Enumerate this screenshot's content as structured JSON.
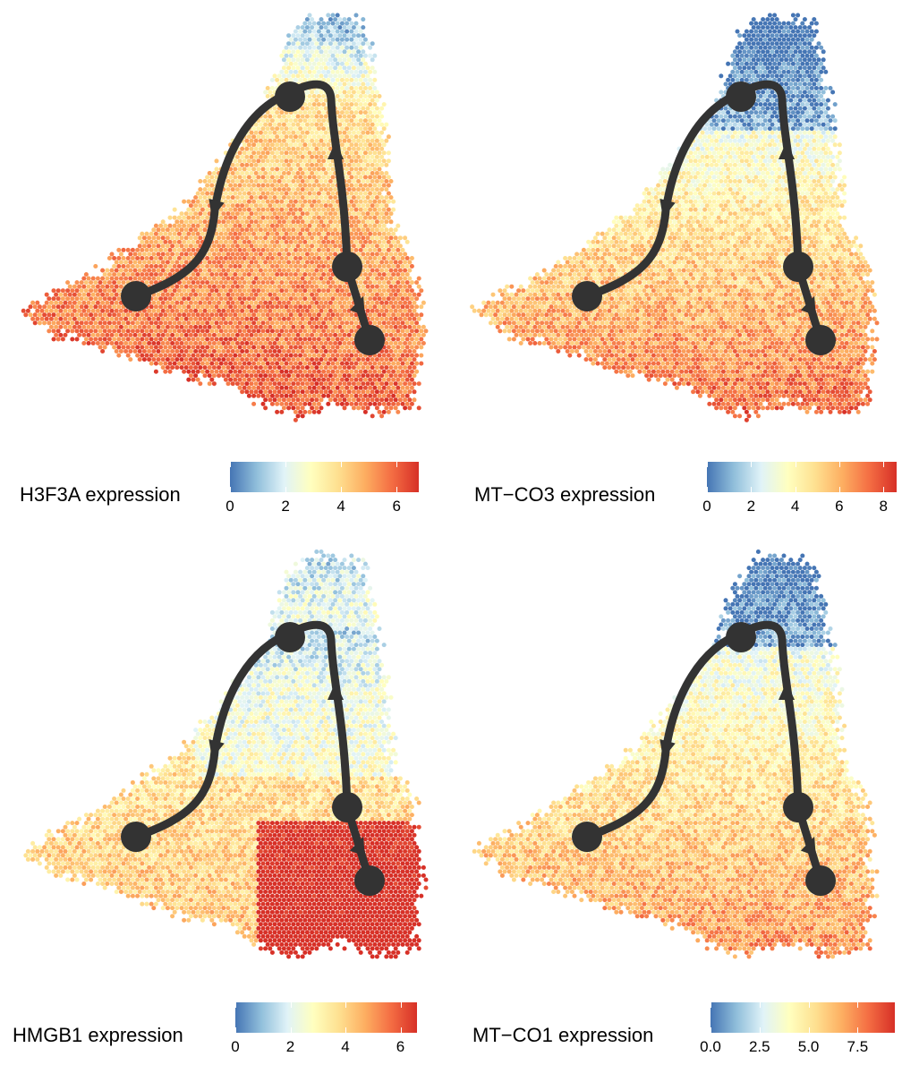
{
  "colorscale": [
    "#4575b4",
    "#91bfdb",
    "#e0f3f8",
    "#ffffbf",
    "#fee090",
    "#fdae61",
    "#f46d43",
    "#d73027"
  ],
  "chart_data": [
    {
      "type": "scatter",
      "subtype": "hexbin embedding with trajectory",
      "legend_title": "H3F3A expression",
      "colorbar_ticks": [
        "0",
        "2",
        "4",
        "6"
      ],
      "colorbar_range": [
        0,
        6.8
      ],
      "pattern": "high-left-bottom",
      "trajectory": {
        "nodes": 4,
        "arrows": 3
      }
    },
    {
      "type": "scatter",
      "subtype": "hexbin embedding with trajectory",
      "legend_title": "MT−CO3 expression",
      "colorbar_ticks": [
        "0",
        "2",
        "4",
        "6",
        "8"
      ],
      "colorbar_range": [
        0,
        8.6
      ],
      "pattern": "low-top",
      "trajectory": {
        "nodes": 4,
        "arrows": 3
      }
    },
    {
      "type": "scatter",
      "subtype": "hexbin embedding with trajectory",
      "legend_title": "HMGB1 expression",
      "colorbar_ticks": [
        "0",
        "2",
        "4",
        "6"
      ],
      "colorbar_range": [
        0,
        6.6
      ],
      "pattern": "high-bottom-right",
      "trajectory": {
        "nodes": 4,
        "arrows": 3
      }
    },
    {
      "type": "scatter",
      "subtype": "hexbin embedding with trajectory",
      "legend_title": "MT−CO1 expression",
      "colorbar_ticks": [
        "0.0",
        "2.5",
        "5.0",
        "7.5"
      ],
      "colorbar_range": [
        0,
        9.4
      ],
      "pattern": "low-top-mild",
      "trajectory": {
        "nodes": 4,
        "arrows": 3
      }
    }
  ]
}
